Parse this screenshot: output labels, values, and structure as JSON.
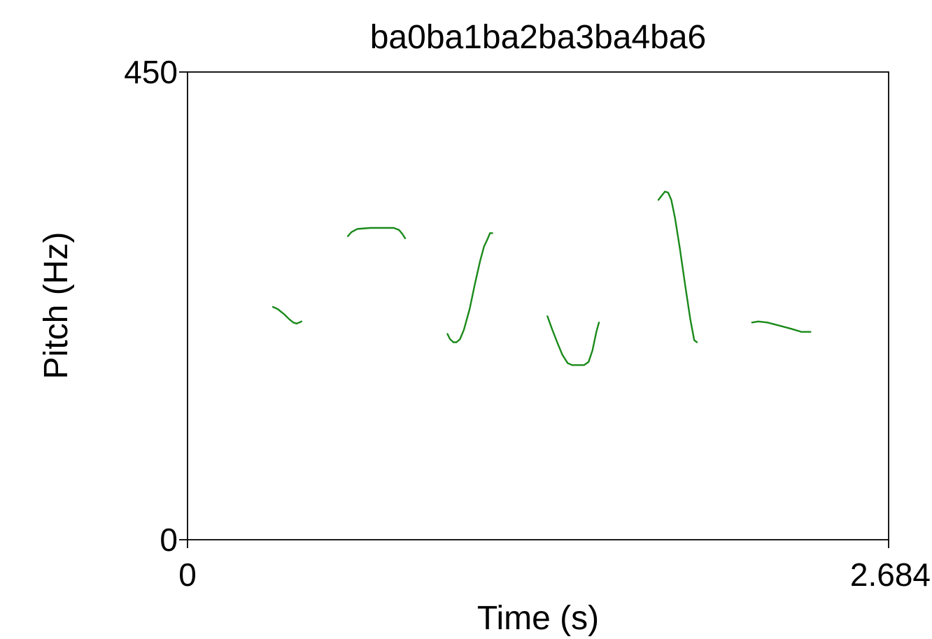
{
  "chart_data": {
    "type": "line",
    "title": "ba0ba1ba2ba3ba4ba6",
    "xlabel": "Time (s)",
    "ylabel": "Pitch (Hz)",
    "xlim": [
      0,
      2.684
    ],
    "ylim": [
      0,
      450
    ],
    "x_tick_labels": [
      "0",
      "2.684"
    ],
    "y_tick_labels": [
      "0",
      "450"
    ],
    "grid": false,
    "line_color": "#1a8a1a",
    "series": [
      {
        "points": [
          [
            0.327,
            224
          ],
          [
            0.345,
            222
          ],
          [
            0.37,
            217
          ],
          [
            0.39,
            212
          ],
          [
            0.405,
            209
          ],
          [
            0.418,
            208
          ],
          [
            0.428,
            209
          ],
          [
            0.436,
            210
          ]
        ]
      },
      {
        "points": [
          [
            0.614,
            292
          ],
          [
            0.628,
            296
          ],
          [
            0.65,
            299
          ],
          [
            0.7,
            300
          ],
          [
            0.75,
            300
          ],
          [
            0.79,
            300
          ],
          [
            0.81,
            298
          ],
          [
            0.823,
            294
          ],
          [
            0.833,
            290
          ]
        ]
      },
      {
        "points": [
          [
            0.995,
            198
          ],
          [
            1.005,
            193
          ],
          [
            1.018,
            190
          ],
          [
            1.03,
            190
          ],
          [
            1.043,
            193
          ],
          [
            1.058,
            202
          ],
          [
            1.08,
            222
          ],
          [
            1.1,
            246
          ],
          [
            1.12,
            268
          ],
          [
            1.135,
            282
          ],
          [
            1.148,
            289
          ],
          [
            1.158,
            295
          ],
          [
            1.167,
            295
          ]
        ]
      },
      {
        "points": [
          [
            1.378,
            215
          ],
          [
            1.395,
            203
          ],
          [
            1.415,
            190
          ],
          [
            1.435,
            178
          ],
          [
            1.455,
            170
          ],
          [
            1.472,
            168
          ],
          [
            1.495,
            168
          ],
          [
            1.518,
            168
          ],
          [
            1.535,
            171
          ],
          [
            1.55,
            182
          ],
          [
            1.565,
            200
          ],
          [
            1.575,
            209
          ]
        ]
      },
      {
        "points": [
          [
            1.803,
            327
          ],
          [
            1.815,
            331
          ],
          [
            1.828,
            335
          ],
          [
            1.84,
            334
          ],
          [
            1.852,
            327
          ],
          [
            1.866,
            310
          ],
          [
            1.885,
            280
          ],
          [
            1.905,
            245
          ],
          [
            1.925,
            212
          ],
          [
            1.94,
            192
          ],
          [
            1.95,
            190
          ]
        ]
      },
      {
        "points": [
          [
            2.161,
            209
          ],
          [
            2.185,
            210
          ],
          [
            2.22,
            209
          ],
          [
            2.265,
            206
          ],
          [
            2.31,
            203
          ],
          [
            2.35,
            200
          ],
          [
            2.385,
            200
          ]
        ]
      }
    ]
  }
}
